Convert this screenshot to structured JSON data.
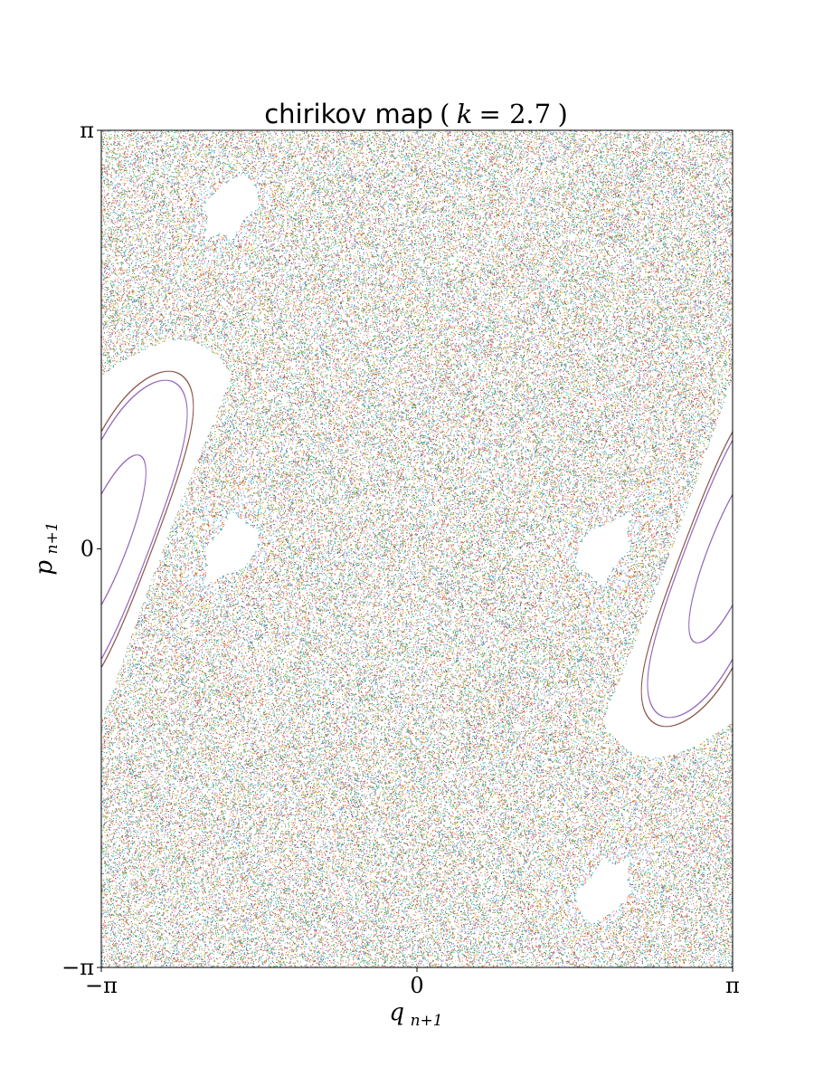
{
  "chart_data": {
    "type": "scatter",
    "title": {
      "prefix": "chirikov map",
      "param_symbol": "k",
      "param_value": "2.7"
    },
    "parameter_k": 2.7,
    "xlabel": {
      "base": "q",
      "subscript": "n+1"
    },
    "ylabel": {
      "base": "p",
      "subscript": "n+1"
    },
    "xlim": [
      -3.14159,
      3.14159
    ],
    "ylim": [
      -3.14159,
      3.14159
    ],
    "x_ticks": [
      {
        "value": -3.14159,
        "label": "−π"
      },
      {
        "value": 0,
        "label": "0"
      },
      {
        "value": 3.14159,
        "label": "π"
      }
    ],
    "y_ticks": [
      {
        "value": -3.14159,
        "label": "−π"
      },
      {
        "value": 0,
        "label": "0"
      },
      {
        "value": 3.14159,
        "label": "π"
      }
    ],
    "grid": false,
    "legend": "none",
    "series": [
      {
        "x0": 0.0,
        "y0": 0.4,
        "n": 1200,
        "color": "#ff7f0e"
      },
      {
        "x0": 0.0,
        "y0": 0.6,
        "n": 1200,
        "color": "#17becf"
      },
      {
        "x0": 0.0,
        "y0": 0.8,
        "n": 1200,
        "color": "#7f7f7f"
      },
      {
        "x0": 0.0,
        "y0": 0.95,
        "n": 1200,
        "color": "#1f77b4"
      },
      {
        "x0": 0.0,
        "y0": 1.1,
        "n": 1200,
        "color": "#9467bd"
      },
      {
        "x0": 0.0,
        "y0": 1.25,
        "n": 1200,
        "color": "#e377c2"
      },
      {
        "x0": 0.0,
        "y0": 1.35,
        "n": 1200,
        "color": "#d62728"
      },
      {
        "x0": 0.0,
        "y0": 1.45,
        "n": 1200,
        "color": "#ff7f0e"
      },
      {
        "x0": 0.0,
        "y0": 1.55,
        "n": 1200,
        "color": "#8c564b"
      },
      {
        "x0": 0.0,
        "y0": 1.65,
        "n": 1200,
        "color": "#2ca02c"
      },
      {
        "x0": 0.0,
        "y0": 1.72,
        "n": 1200,
        "color": "#bcbd22"
      },
      {
        "x0": 0.0,
        "y0": 1.8,
        "n": 1200,
        "color": "#17becf"
      },
      {
        "x0": 0.1,
        "y0": 2.2,
        "n": 6000,
        "color": "#1f77b4"
      },
      {
        "x0": 0.3,
        "y0": 2.6,
        "n": 6000,
        "color": "#ff7f0e"
      },
      {
        "x0": 1.2,
        "y0": 1.5,
        "n": 6000,
        "color": "#2ca02c"
      },
      {
        "x0": -1.5,
        "y0": 2.9,
        "n": 6000,
        "color": "#d62728"
      },
      {
        "x0": 2.3,
        "y0": -1.1,
        "n": 6000,
        "color": "#9467bd"
      },
      {
        "x0": -2.4,
        "y0": 0.5,
        "n": 6000,
        "color": "#8c564b"
      },
      {
        "x0": 0.8,
        "y0": -2.5,
        "n": 6000,
        "color": "#e377c2"
      },
      {
        "x0": -0.9,
        "y0": -2.2,
        "n": 6000,
        "color": "#7f7f7f"
      },
      {
        "x0": 2.8,
        "y0": 2.0,
        "n": 6000,
        "color": "#bcbd22"
      },
      {
        "x0": -2.9,
        "y0": -2.8,
        "n": 6000,
        "color": "#17becf"
      },
      {
        "x0": 1.9,
        "y0": 3.0,
        "n": 6000,
        "color": "#1f77b4"
      },
      {
        "x0": -1.8,
        "y0": -0.3,
        "n": 6000,
        "color": "#ff7f0e"
      },
      {
        "x0": 0.5,
        "y0": -3.0,
        "n": 6000,
        "color": "#2ca02c"
      },
      {
        "x0": -0.2,
        "y0": 3.1,
        "n": 6000,
        "color": "#d62728"
      },
      {
        "x0": 3.0,
        "y0": 0.2,
        "n": 6000,
        "color": "#9467bd"
      },
      {
        "x0": -3.0,
        "y0": 1.7,
        "n": 6000,
        "color": "#8c564b"
      },
      {
        "x0": 1.5,
        "y0": -2.0,
        "n": 6000,
        "color": "#e377c2"
      },
      {
        "x0": -1.1,
        "y0": 2.4,
        "n": 6000,
        "color": "#7f7f7f"
      },
      {
        "x0": 2.6,
        "y0": -2.9,
        "n": 6000,
        "color": "#bcbd22"
      },
      {
        "x0": -2.2,
        "y0": -1.6,
        "n": 6000,
        "color": "#17becf"
      },
      {
        "x0": 0.05,
        "y0": 1.05,
        "n": 4000,
        "color": "#2ca02c",
        "dx": 2.0,
        "dy": 0.0
      },
      {
        "x0": 0.15,
        "y0": 1.05,
        "n": 4000,
        "color": "#7f7f7f",
        "dx": 2.0,
        "dy": 0.0
      },
      {
        "x0": 0.25,
        "y0": 1.05,
        "n": 4000,
        "color": "#9467bd",
        "dx": 2.0,
        "dy": 0.0
      }
    ]
  }
}
